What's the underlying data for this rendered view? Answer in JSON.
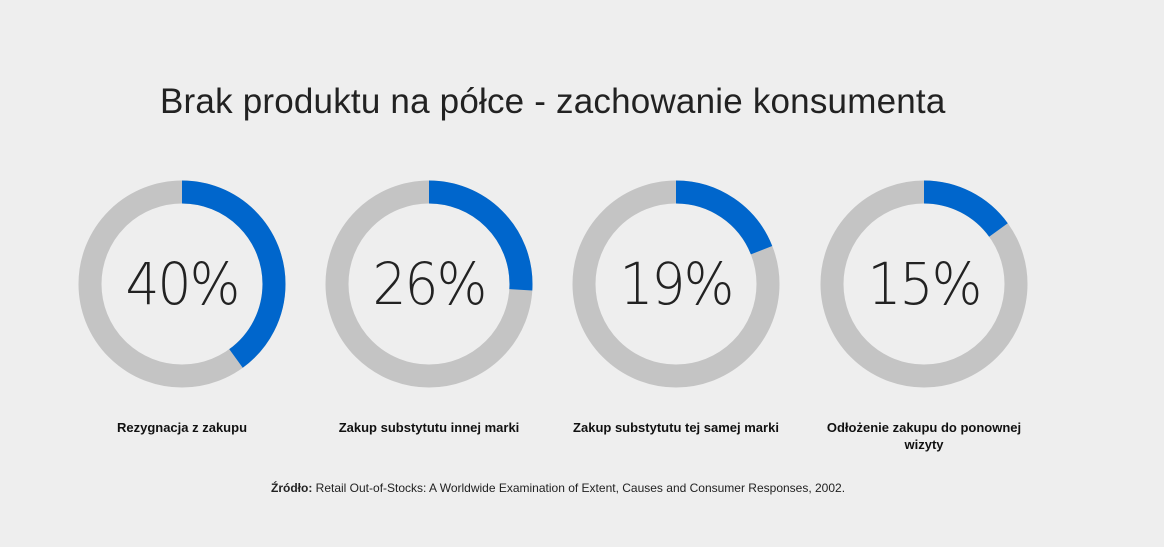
{
  "chart_data": {
    "type": "pie",
    "subtype": "donut",
    "title": "Brak produktu na półce - zachowanie konsumenta",
    "items": [
      {
        "label": "Rezygnacja z zakupu",
        "value": 40,
        "display": "40%"
      },
      {
        "label": "Zakup substytutu innej marki",
        "value": 26,
        "display": "26%"
      },
      {
        "label": "Zakup substytutu tej samej marki",
        "value": 19,
        "display": "19%"
      },
      {
        "label": "Odłożenie zakupu do ponownej wizyty",
        "value": 15,
        "display": "15%"
      }
    ],
    "colors": {
      "fill": "#0066cc",
      "track": "#c4c4c4"
    }
  },
  "source": {
    "label": "Źródło:",
    "text": " Retail Out-of-Stocks: A Worldwide Examination of Extent, Causes and Consumer Responses, 2002."
  }
}
